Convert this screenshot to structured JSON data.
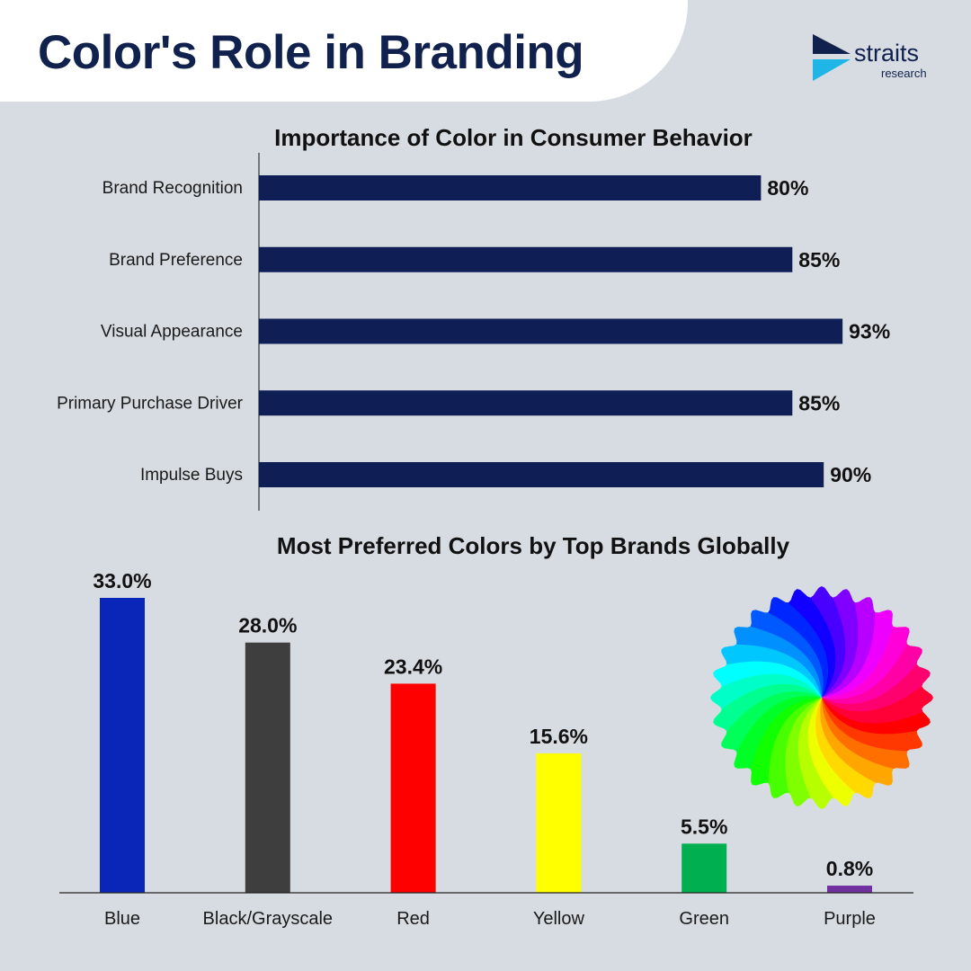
{
  "header": {
    "title": "Color's Role in Branding",
    "logo_word": "straits",
    "logo_sub": "research"
  },
  "colors": {
    "navy": "#0f1f55",
    "background": "#d7dce2",
    "title": "#10214d",
    "logo_cyan": "#1fb5e6"
  },
  "chart_data": [
    {
      "type": "bar",
      "orientation": "horizontal",
      "title": "Importance of Color in Consumer Behavior",
      "categories": [
        "Brand Recognition",
        "Brand Preference",
        "Visual Appearance",
        "Primary Purchase Driver",
        "Impulse Buys"
      ],
      "values": [
        80,
        85,
        93,
        85,
        90
      ],
      "value_labels": [
        "80%",
        "85%",
        "93%",
        "85%",
        "90%"
      ],
      "unit": "%",
      "xlim": [
        0,
        100
      ],
      "bar_color": "#0f1f55",
      "grid": false,
      "legend": "none"
    },
    {
      "type": "bar",
      "orientation": "vertical",
      "title": "Most Preferred Colors by Top Brands Globally",
      "categories": [
        "Blue",
        "Black/Grayscale",
        "Red",
        "Yellow",
        "Green",
        "Purple"
      ],
      "values": [
        33.0,
        28.0,
        23.4,
        15.6,
        5.5,
        0.8
      ],
      "value_labels": [
        "33.0%",
        "28.0%",
        "23.4%",
        "15.6%",
        "5.5%",
        "0.8%"
      ],
      "unit": "%",
      "ylim": [
        0,
        33
      ],
      "bar_colors": [
        "#0a26b8",
        "#3e3e3e",
        "#ff0000",
        "#ffff00",
        "#00b050",
        "#7030a0"
      ],
      "grid": false,
      "legend": "none"
    }
  ]
}
